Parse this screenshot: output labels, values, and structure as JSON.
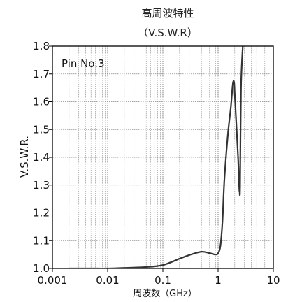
{
  "chart_data": {
    "type": "line",
    "title": "高周波特性",
    "subtitle": "（V.S.W.R）",
    "xlabel": "周波数（GHz）",
    "ylabel": "V.S.W.R.",
    "annotation": "Pin No.3",
    "x_scale": "log",
    "xlim": [
      0.001,
      10
    ],
    "ylim": [
      1.0,
      1.8
    ],
    "x_ticks": [
      0.001,
      0.01,
      0.1,
      1,
      10
    ],
    "x_tick_labels": [
      "0.001",
      "0.01",
      "0.1",
      "1",
      "10"
    ],
    "y_ticks": [
      1.0,
      1.1,
      1.2,
      1.3,
      1.4,
      1.5,
      1.6,
      1.7,
      1.8
    ],
    "y_tick_labels": [
      "1.0",
      "1.1",
      "1.2",
      "1.3",
      "1.4",
      "1.5",
      "1.6",
      "1.7",
      "1.8"
    ],
    "grid": true,
    "line_color": "#333333",
    "series": [
      {
        "x": [
          0.002,
          0.005,
          0.01,
          0.02,
          0.05,
          0.1,
          0.2,
          0.3,
          0.5,
          0.7,
          0.9,
          1.0,
          1.1,
          1.2,
          1.3,
          1.5,
          1.7,
          1.85,
          1.95,
          2.0,
          2.1,
          2.3,
          2.4,
          2.45,
          2.5,
          2.6,
          2.8
        ],
        "y": [
          1.0,
          1.0,
          1.0,
          1.002,
          1.005,
          1.012,
          1.035,
          1.048,
          1.06,
          1.055,
          1.05,
          1.055,
          1.08,
          1.17,
          1.32,
          1.48,
          1.58,
          1.665,
          1.67,
          1.63,
          1.55,
          1.4,
          1.3,
          1.275,
          1.3,
          1.65,
          1.8
        ]
      }
    ]
  }
}
